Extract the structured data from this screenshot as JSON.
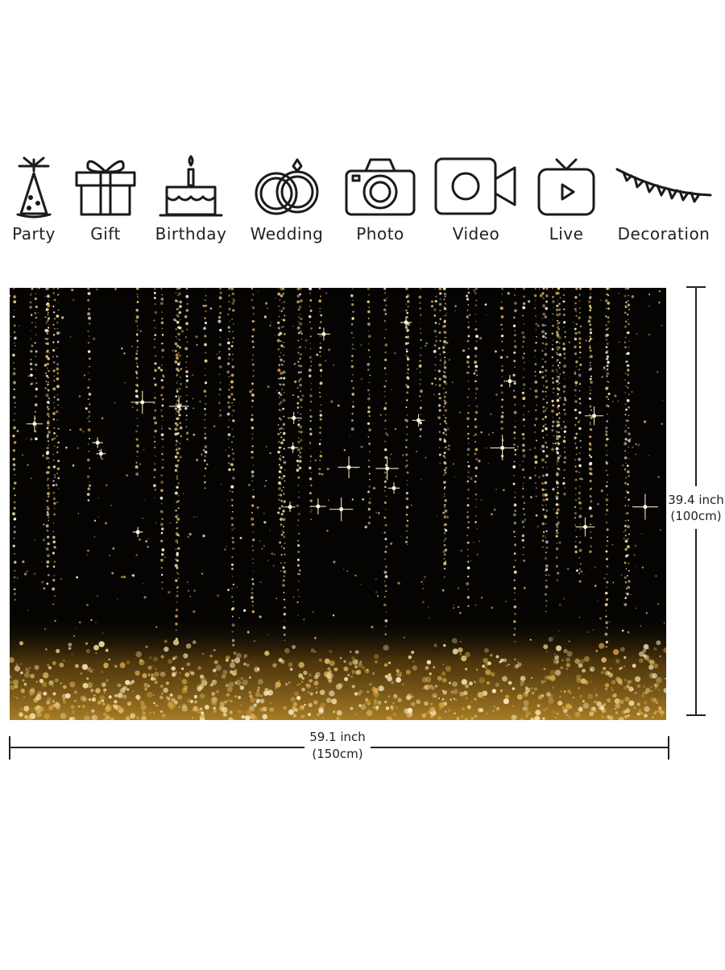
{
  "icons": [
    "Party",
    "Gift",
    "Birthday",
    "Wedding",
    "Photo",
    "Video",
    "Live",
    "Decoration"
  ],
  "dimensions": {
    "width": {
      "inch": "59.1 inch",
      "cm": "(150cm)"
    },
    "height": {
      "inch": "39.4 inch",
      "cm": "(100cm)"
    }
  }
}
